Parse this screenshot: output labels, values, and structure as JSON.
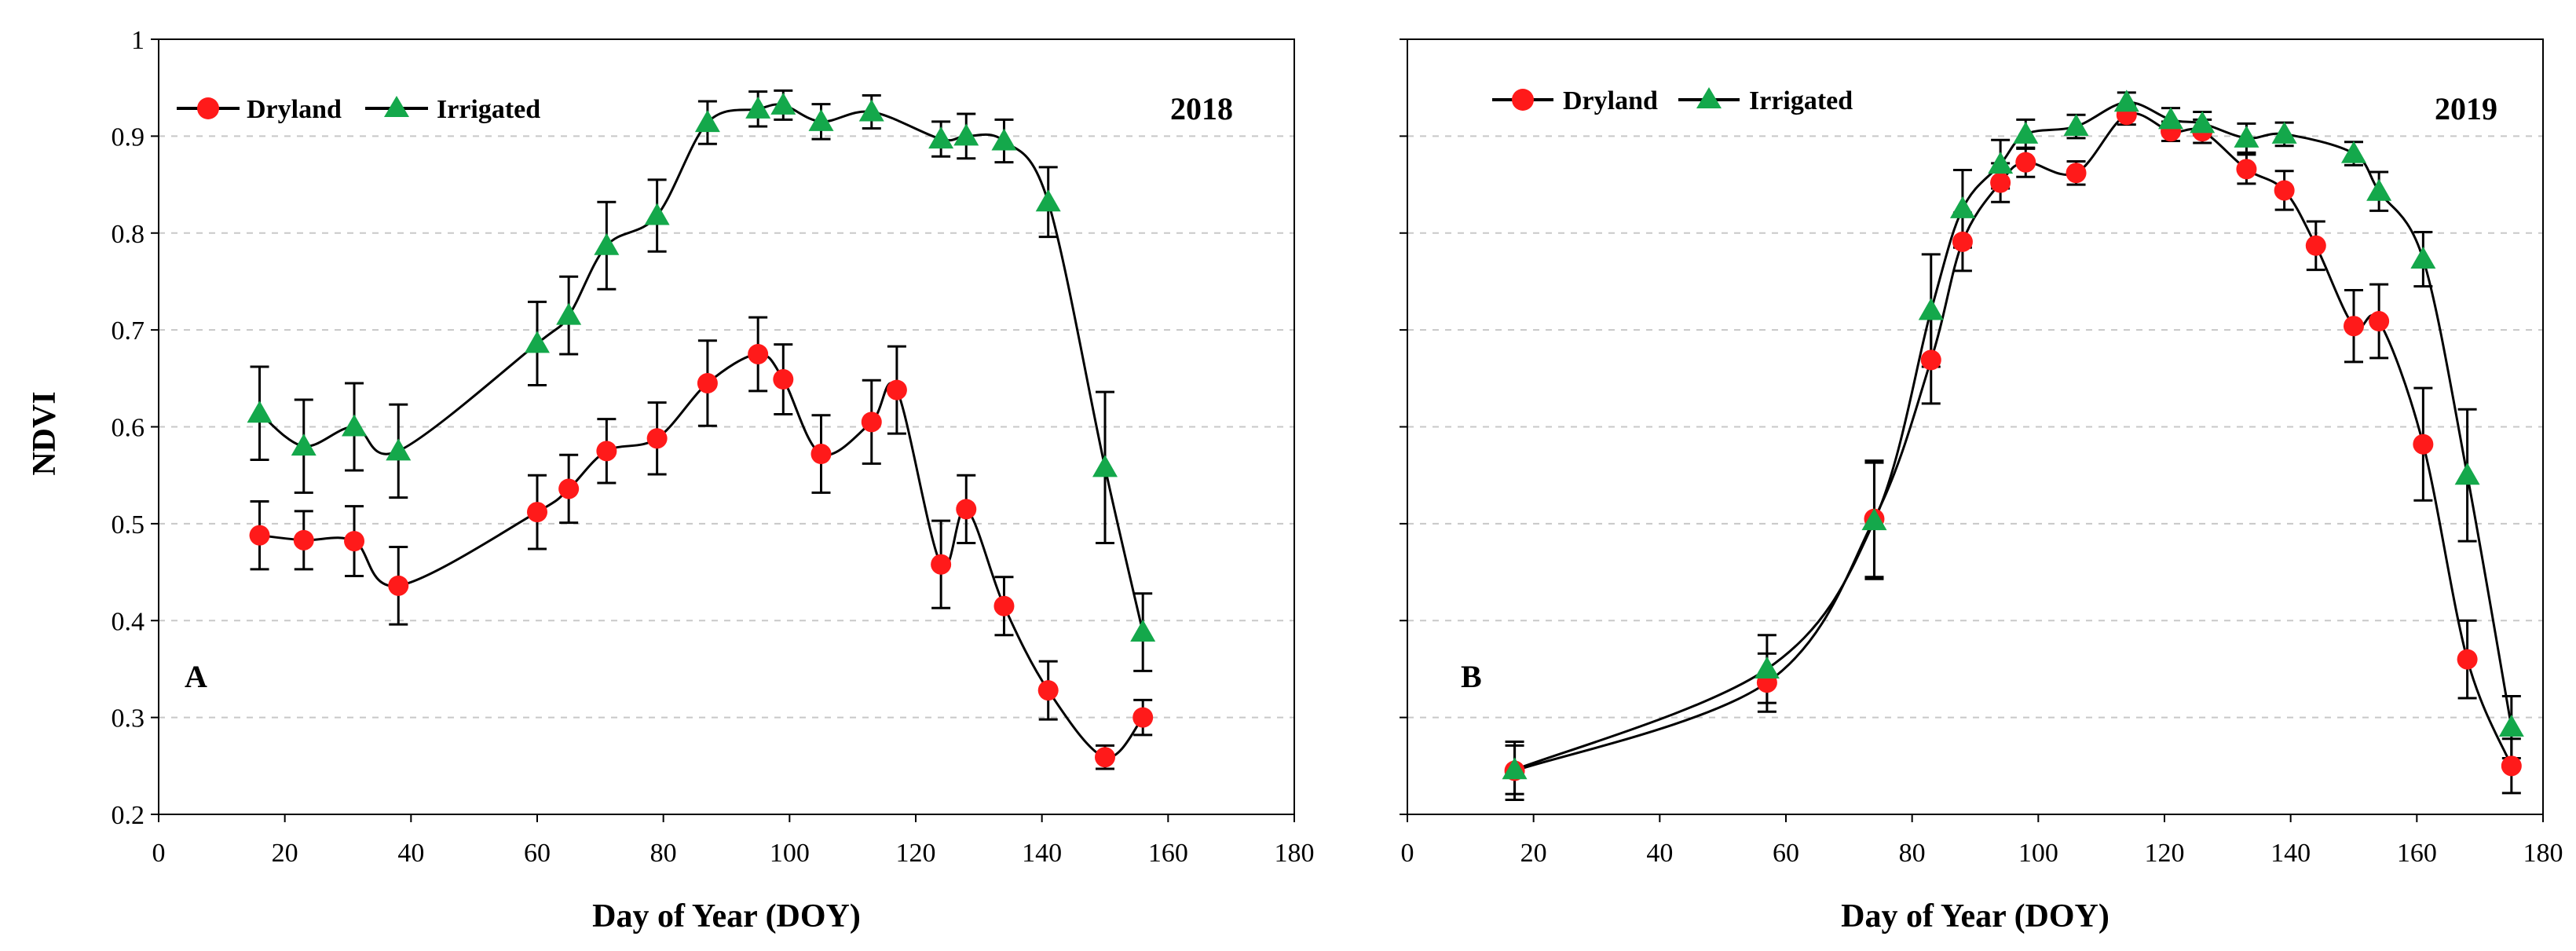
{
  "colors": {
    "dryland": "#ff1a1a",
    "irrigated": "#14a84b",
    "line": "#000000",
    "grid": "#c8c8c8"
  },
  "chart_data": [
    {
      "type": "line",
      "panel_label": "A",
      "year": "2018",
      "xlabel": "Day of Year (DOY)",
      "ylabel": "NDVI",
      "xlim": [
        0,
        180
      ],
      "ylim": [
        0.2,
        1.0
      ],
      "xticks": [
        0,
        20,
        40,
        60,
        80,
        100,
        120,
        140,
        160,
        180
      ],
      "yticks": [
        0.2,
        0.3,
        0.4,
        0.5,
        0.6,
        0.7,
        0.8,
        0.9,
        1.0
      ],
      "ytick_labels": [
        "0.2",
        "0.3",
        "0.4",
        "0.5",
        "0.6",
        "0.7",
        "0.8",
        "0.9",
        "1"
      ],
      "grid": "horizontal dashed",
      "legend_position": "top-left",
      "series": [
        {
          "name": "Dryland",
          "marker": "circle",
          "x": [
            16,
            23,
            31,
            38,
            60,
            65,
            71,
            79,
            87,
            95,
            99,
            105,
            113,
            117,
            124,
            128,
            134,
            141,
            150,
            156
          ],
          "y": [
            0.488,
            0.483,
            0.482,
            0.436,
            0.512,
            0.536,
            0.575,
            0.588,
            0.645,
            0.675,
            0.649,
            0.572,
            0.605,
            0.638,
            0.458,
            0.515,
            0.415,
            0.328,
            0.259,
            0.3
          ],
          "err": [
            0.035,
            0.03,
            0.036,
            0.04,
            0.038,
            0.035,
            0.033,
            0.037,
            0.044,
            0.038,
            0.036,
            0.04,
            0.043,
            0.045,
            0.045,
            0.035,
            0.03,
            0.03,
            0.012,
            0.018
          ]
        },
        {
          "name": "Irrigated",
          "marker": "triangle",
          "x": [
            16,
            23,
            31,
            38,
            60,
            65,
            71,
            79,
            87,
            95,
            99,
            105,
            113,
            124,
            128,
            134,
            141,
            150,
            156
          ],
          "y": [
            0.614,
            0.58,
            0.6,
            0.575,
            0.686,
            0.715,
            0.787,
            0.818,
            0.914,
            0.928,
            0.932,
            0.915,
            0.925,
            0.897,
            0.9,
            0.895,
            0.832,
            0.558,
            0.388
          ],
          "err": [
            0.048,
            0.048,
            0.045,
            0.048,
            0.043,
            0.04,
            0.045,
            0.037,
            0.022,
            0.018,
            0.015,
            0.018,
            0.017,
            0.018,
            0.023,
            0.022,
            0.036,
            0.078,
            0.04
          ]
        }
      ]
    },
    {
      "type": "line",
      "panel_label": "B",
      "year": "2019",
      "xlabel": "Day of Year (DOY)",
      "ylabel": "",
      "xlim": [
        0,
        180
      ],
      "ylim": [
        0.2,
        1.0
      ],
      "xticks": [
        0,
        20,
        40,
        60,
        80,
        100,
        120,
        140,
        160,
        180
      ],
      "yticks": [
        0.2,
        0.3,
        0.4,
        0.5,
        0.6,
        0.7,
        0.8,
        0.9,
        1.0
      ],
      "ytick_labels": [],
      "grid": "horizontal dashed",
      "legend_position": "top-left",
      "series": [
        {
          "name": "Dryland",
          "marker": "circle",
          "x": [
            17,
            57,
            74,
            83,
            88,
            94,
            98,
            106,
            114,
            121,
            126,
            133,
            139,
            144,
            150,
            154,
            161,
            168,
            175
          ],
          "y": [
            0.245,
            0.336,
            0.505,
            0.669,
            0.791,
            0.852,
            0.873,
            0.862,
            0.922,
            0.905,
            0.905,
            0.866,
            0.844,
            0.787,
            0.704,
            0.709,
            0.582,
            0.36,
            0.25
          ],
          "err": [
            0.03,
            0.03,
            0.06,
            0.045,
            0.03,
            0.02,
            0.015,
            0.012,
            0.01,
            0.01,
            0.012,
            0.015,
            0.02,
            0.025,
            0.037,
            0.038,
            0.058,
            0.04,
            0.028
          ]
        },
        {
          "name": "Irrigated",
          "marker": "triangle",
          "x": [
            17,
            57,
            74,
            83,
            88,
            94,
            98,
            106,
            114,
            121,
            126,
            133,
            139,
            150,
            154,
            161,
            168,
            175
          ],
          "y": [
            0.246,
            0.35,
            0.503,
            0.72,
            0.825,
            0.871,
            0.902,
            0.91,
            0.935,
            0.917,
            0.913,
            0.898,
            0.902,
            0.882,
            0.843,
            0.773,
            0.55,
            0.29
          ],
          "err": [
            0.025,
            0.035,
            0.06,
            0.058,
            0.04,
            0.025,
            0.015,
            0.012,
            0.01,
            0.012,
            0.012,
            0.015,
            0.012,
            0.012,
            0.02,
            0.028,
            0.068,
            0.032
          ]
        }
      ]
    }
  ]
}
